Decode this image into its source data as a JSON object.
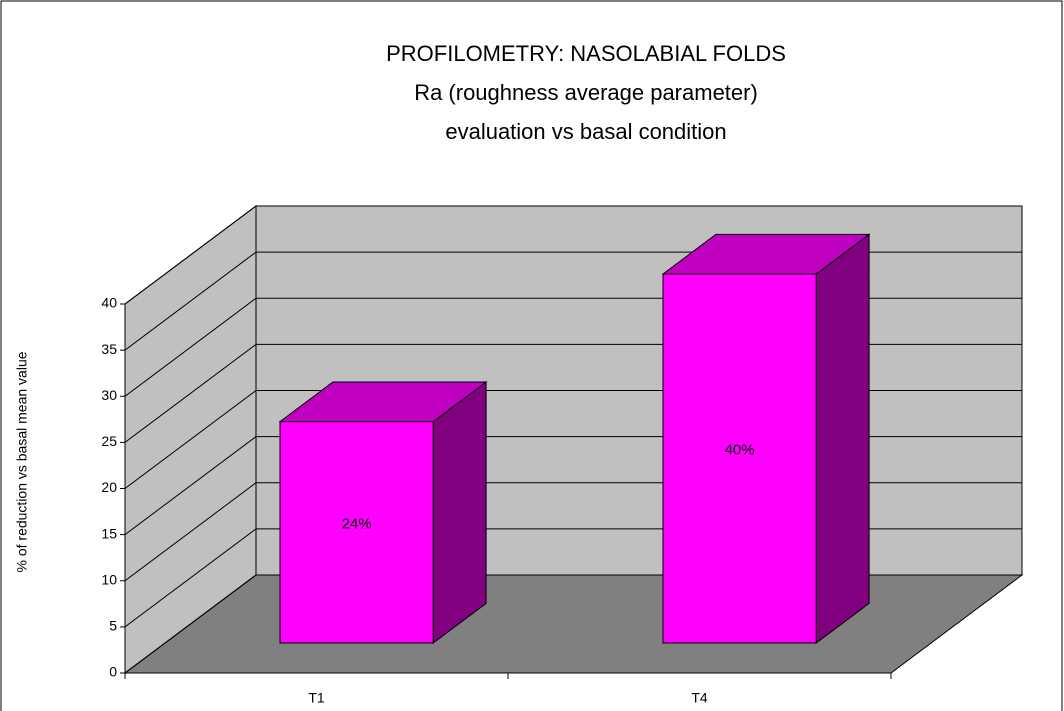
{
  "chart_data": {
    "type": "bar3d",
    "title": [
      "PROFILOMETRY: NASOLABIAL FOLDS",
      "Ra (roughness average parameter)",
      "evaluation vs basal condition"
    ],
    "y_label": "% of reduction vs basal mean value",
    "categories": [
      "T1",
      "T4"
    ],
    "values": [
      24,
      40
    ],
    "value_labels": [
      "24%",
      "40%"
    ],
    "color": "#ff00ff",
    "ylim": [
      0,
      40
    ],
    "yticks": [
      0,
      5,
      10,
      15,
      20,
      25,
      30,
      35,
      40
    ],
    "grid": true
  }
}
